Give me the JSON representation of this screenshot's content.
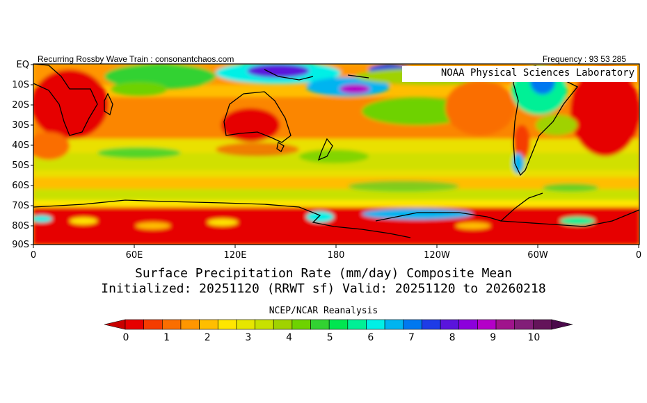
{
  "header": {
    "left_text": "Recurring Rossby Wave Train : consonantchaos.com",
    "right_text": "Frequency : 93 53 285"
  },
  "overlay_label": "NOAA Physical Sciences Laboratory",
  "title": {
    "line1": "Surface Precipitation Rate (mm/day) Composite Mean",
    "line2": "Initialized: 20251120 (RRWT sf) Valid: 20251120 to 20260218"
  },
  "dataset_label": "NCEP/NCAR Reanalysis",
  "map": {
    "y_axis_labels": [
      "EQ",
      "10S",
      "20S",
      "30S",
      "40S",
      "50S",
      "60S",
      "70S",
      "80S",
      "90S"
    ],
    "x_axis_labels": [
      "0",
      "60E",
      "120E",
      "180",
      "120W",
      "60W",
      "0"
    ]
  },
  "colorbar": {
    "colors": [
      "#e60000",
      "#f53c00",
      "#fa6e00",
      "#ff9600",
      "#ffbe00",
      "#ffe600",
      "#e6e600",
      "#c8e100",
      "#a0d200",
      "#6ed200",
      "#32d232",
      "#00e650",
      "#00f096",
      "#00f0e6",
      "#00b4f0",
      "#0078f0",
      "#1e3ce6",
      "#5a14dc",
      "#8c00dc",
      "#b400c8",
      "#a0148c",
      "#821e78",
      "#64145a"
    ],
    "under_color": "#c80000",
    "over_color": "#4b0a4b",
    "tick_labels": [
      "0",
      "1",
      "2",
      "3",
      "4",
      "5",
      "6",
      "7",
      "8",
      "9",
      "10"
    ]
  }
}
